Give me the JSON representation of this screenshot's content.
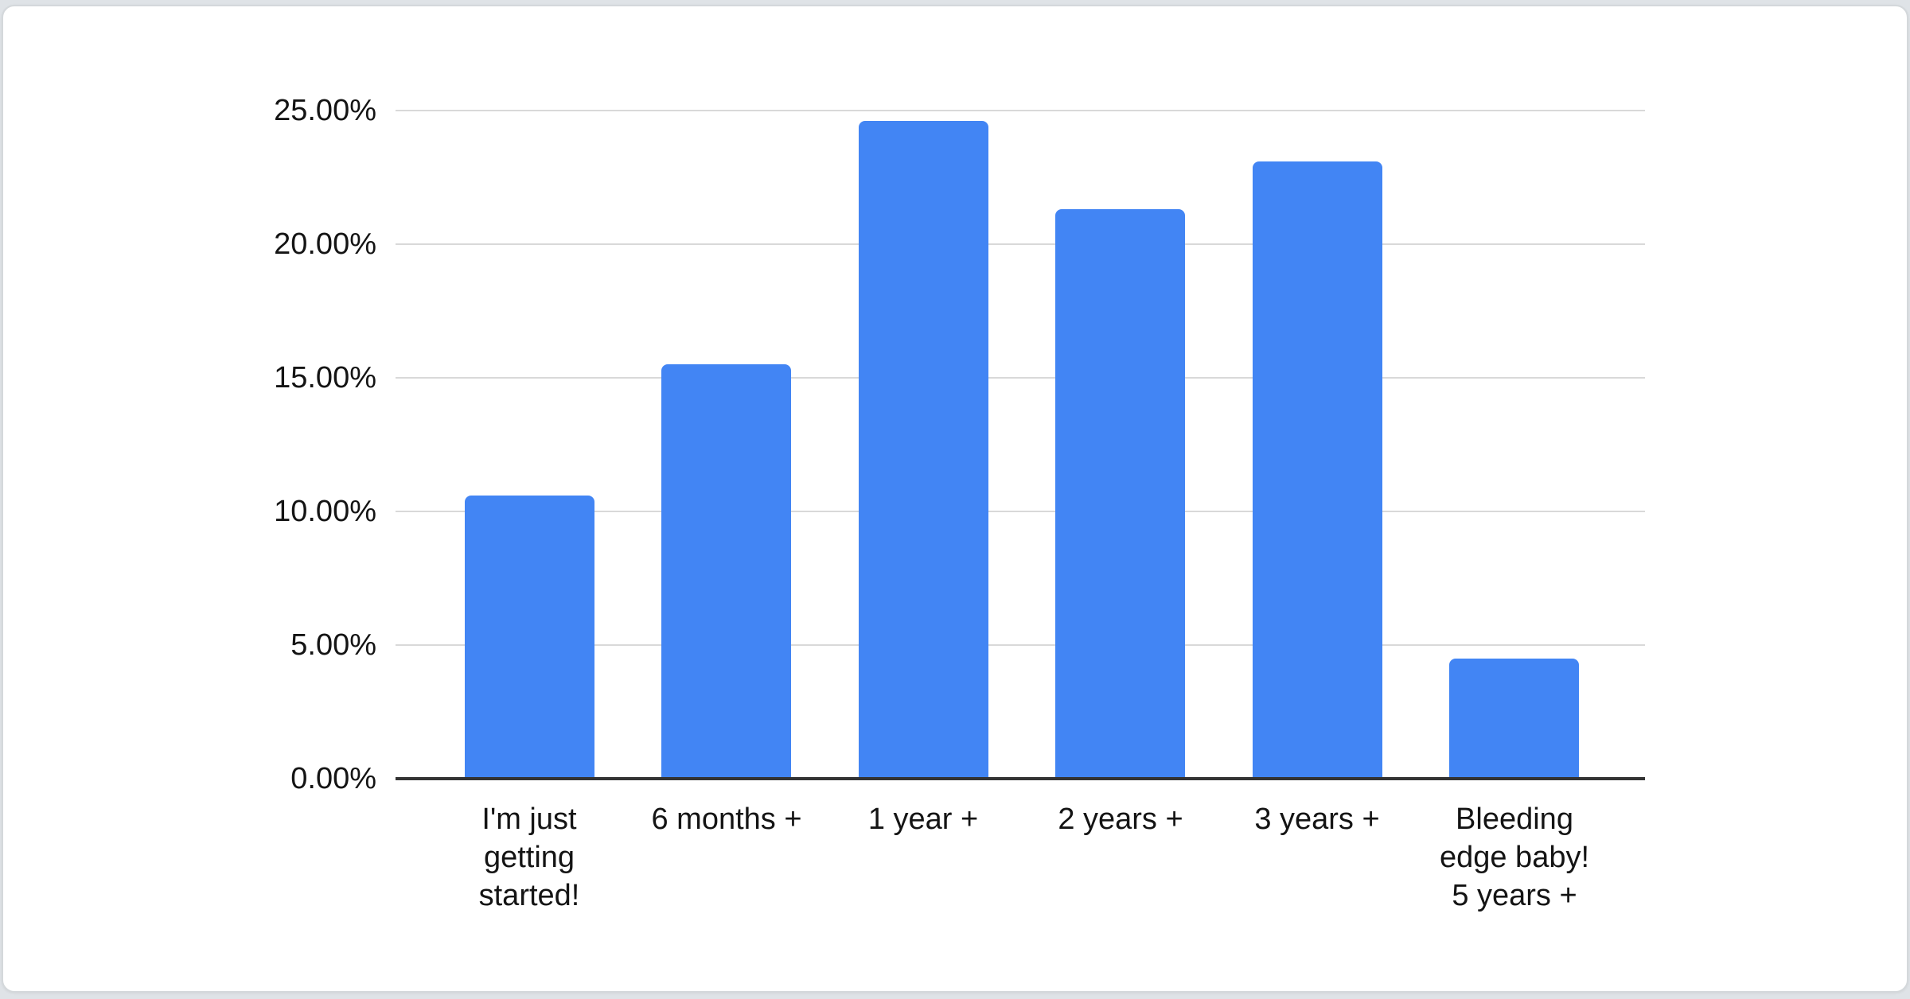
{
  "page": {
    "background_color": "#dfe3e7",
    "card_background_color": "#ffffff"
  },
  "chart_data": {
    "type": "bar",
    "title": "",
    "xlabel": "",
    "ylabel": "",
    "categories": [
      "I'm just getting started!",
      "6 months +",
      "1 year +",
      "2 years +",
      "3 years +",
      "Bleeding edge baby! 5 years +"
    ],
    "values": [
      10.6,
      15.5,
      24.6,
      21.3,
      23.1,
      4.5
    ],
    "value_unit": "%",
    "ytick_labels": [
      "0.00%",
      "5.00%",
      "10.00%",
      "15.00%",
      "20.00%",
      "25.00%"
    ],
    "ytick_values": [
      0,
      5,
      10,
      15,
      20,
      25
    ],
    "ylim": [
      0,
      25
    ],
    "grid": true,
    "legend_position": "none",
    "bar_color": "#4285f4",
    "gridline_color": "#d9d9d9",
    "axis_line_color": "#333333",
    "text_color": "#141414"
  }
}
